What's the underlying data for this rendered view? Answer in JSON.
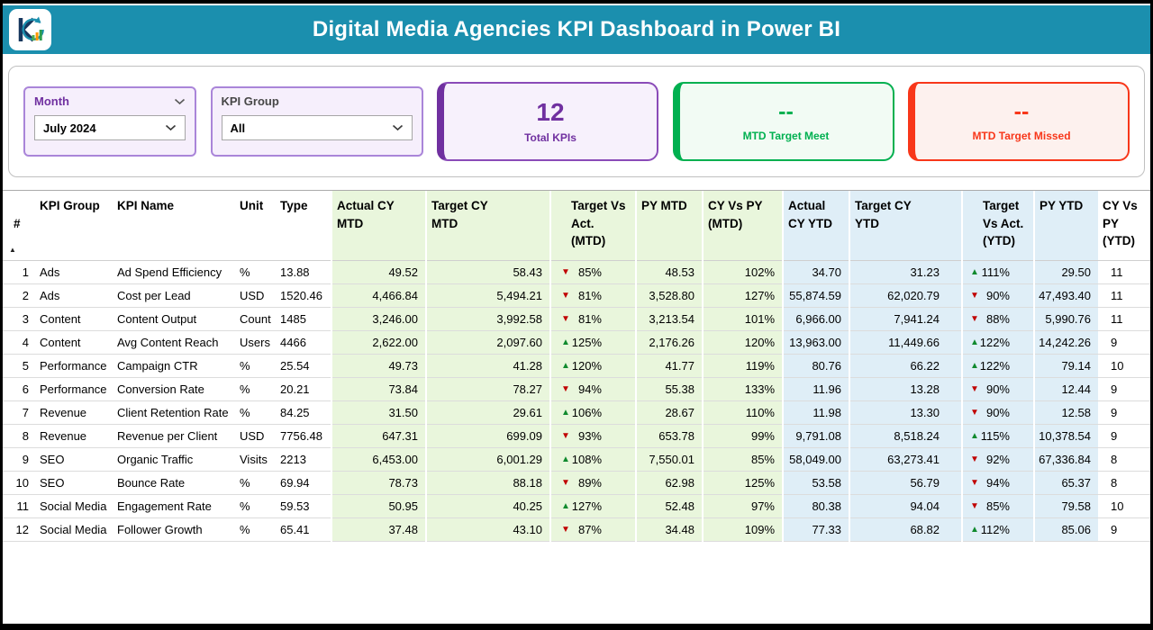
{
  "colors": {
    "header_bg": "#1b8fae",
    "accent_purple": "#7030a0",
    "accent_green": "#00b050",
    "accent_red": "#f8371a",
    "mtd_column_tint": "#e9f6dc",
    "ytd_column_tint": "#dfeef7"
  },
  "header": {
    "title": "Digital Media Agencies KPI Dashboard in Power BI"
  },
  "slicers": {
    "month": {
      "label": "Month",
      "value": "July 2024"
    },
    "kpi_group": {
      "label": "KPI Group",
      "value": "All"
    }
  },
  "cards": {
    "total_kpis": {
      "value": "12",
      "label": "Total KPIs"
    },
    "mtd_target_meet": {
      "value": "--",
      "label": "MTD Target Meet"
    },
    "mtd_target_missed": {
      "value": "--",
      "label": "MTD Target Missed"
    }
  },
  "table": {
    "sort": "ascending",
    "columns": [
      {
        "key": "num",
        "label": "#",
        "group": "plain",
        "align": "num"
      },
      {
        "key": "kpi_group",
        "label": "KPI Group",
        "group": "plain",
        "align": "left"
      },
      {
        "key": "kpi_name",
        "label": "KPI Name",
        "group": "plain",
        "align": "left"
      },
      {
        "key": "unit",
        "label": "Unit",
        "group": "plain",
        "align": "left"
      },
      {
        "key": "type",
        "label": "Type",
        "group": "plain",
        "align": "left"
      },
      {
        "key": "actual_cy_mtd",
        "label": "Actual CY\nMTD",
        "group": "mtd",
        "align": "right"
      },
      {
        "key": "target_cy_mtd",
        "label": "Target CY\nMTD",
        "group": "mtd",
        "align": "right"
      },
      {
        "key": "target_vs_act_mtd",
        "label": "Target Vs\nAct.\n(MTD)",
        "group": "mtd",
        "align": "kpi"
      },
      {
        "key": "py_mtd",
        "label": "PY MTD",
        "group": "mtd",
        "align": "right"
      },
      {
        "key": "cy_vs_py_mtd",
        "label": "CY Vs PY\n(MTD)",
        "group": "mtd",
        "align": "right"
      },
      {
        "key": "actual_cy_ytd",
        "label": "Actual\nCY YTD",
        "group": "ytd",
        "align": "right"
      },
      {
        "key": "target_cy_ytd",
        "label": "Target CY\nYTD",
        "group": "ytd",
        "align": "right"
      },
      {
        "key": "target_vs_act_ytd",
        "label": "Target\nVs Act.\n(YTD)",
        "group": "ytd",
        "align": "kpi"
      },
      {
        "key": "py_ytd",
        "label": "PY YTD",
        "group": "ytd",
        "align": "right"
      },
      {
        "key": "cy_vs_py_ytd",
        "label": "CY Vs\nPY\n(YTD)",
        "group": "plain",
        "align": "left"
      }
    ],
    "rows": [
      {
        "num": "1",
        "kpi_group": "Ads",
        "kpi_name": "Ad Spend Efficiency",
        "unit": "%",
        "type": "13.88",
        "actual_cy_mtd": "49.52",
        "target_cy_mtd": "58.43",
        "target_vs_act_mtd": "85%",
        "target_vs_act_mtd_dir": "down",
        "py_mtd": "48.53",
        "cy_vs_py_mtd": "102%",
        "actual_cy_ytd": "34.70",
        "target_cy_ytd": "31.23",
        "target_vs_act_ytd": "111%",
        "target_vs_act_ytd_dir": "up",
        "py_ytd": "29.50",
        "cy_vs_py_ytd": "11"
      },
      {
        "num": "2",
        "kpi_group": "Ads",
        "kpi_name": "Cost per Lead",
        "unit": "USD",
        "type": "1520.46",
        "actual_cy_mtd": "4,466.84",
        "target_cy_mtd": "5,494.21",
        "target_vs_act_mtd": "81%",
        "target_vs_act_mtd_dir": "down",
        "py_mtd": "3,528.80",
        "cy_vs_py_mtd": "127%",
        "actual_cy_ytd": "55,874.59",
        "target_cy_ytd": "62,020.79",
        "target_vs_act_ytd": "90%",
        "target_vs_act_ytd_dir": "down",
        "py_ytd": "47,493.40",
        "cy_vs_py_ytd": "11"
      },
      {
        "num": "3",
        "kpi_group": "Content",
        "kpi_name": "Content Output",
        "unit": "Count",
        "type": "1485",
        "actual_cy_mtd": "3,246.00",
        "target_cy_mtd": "3,992.58",
        "target_vs_act_mtd": "81%",
        "target_vs_act_mtd_dir": "down",
        "py_mtd": "3,213.54",
        "cy_vs_py_mtd": "101%",
        "actual_cy_ytd": "6,966.00",
        "target_cy_ytd": "7,941.24",
        "target_vs_act_ytd": "88%",
        "target_vs_act_ytd_dir": "down",
        "py_ytd": "5,990.76",
        "cy_vs_py_ytd": "11"
      },
      {
        "num": "4",
        "kpi_group": "Content",
        "kpi_name": "Avg Content Reach",
        "unit": "Users",
        "type": "4466",
        "actual_cy_mtd": "2,622.00",
        "target_cy_mtd": "2,097.60",
        "target_vs_act_mtd": "125%",
        "target_vs_act_mtd_dir": "up",
        "py_mtd": "2,176.26",
        "cy_vs_py_mtd": "120%",
        "actual_cy_ytd": "13,963.00",
        "target_cy_ytd": "11,449.66",
        "target_vs_act_ytd": "122%",
        "target_vs_act_ytd_dir": "up",
        "py_ytd": "14,242.26",
        "cy_vs_py_ytd": "9"
      },
      {
        "num": "5",
        "kpi_group": "Performance",
        "kpi_name": "Campaign CTR",
        "unit": "%",
        "type": "25.54",
        "actual_cy_mtd": "49.73",
        "target_cy_mtd": "41.28",
        "target_vs_act_mtd": "120%",
        "target_vs_act_mtd_dir": "up",
        "py_mtd": "41.77",
        "cy_vs_py_mtd": "119%",
        "actual_cy_ytd": "80.76",
        "target_cy_ytd": "66.22",
        "target_vs_act_ytd": "122%",
        "target_vs_act_ytd_dir": "up",
        "py_ytd": "79.14",
        "cy_vs_py_ytd": "10"
      },
      {
        "num": "6",
        "kpi_group": "Performance",
        "kpi_name": "Conversion Rate",
        "unit": "%",
        "type": "20.21",
        "actual_cy_mtd": "73.84",
        "target_cy_mtd": "78.27",
        "target_vs_act_mtd": "94%",
        "target_vs_act_mtd_dir": "down",
        "py_mtd": "55.38",
        "cy_vs_py_mtd": "133%",
        "actual_cy_ytd": "11.96",
        "target_cy_ytd": "13.28",
        "target_vs_act_ytd": "90%",
        "target_vs_act_ytd_dir": "down",
        "py_ytd": "12.44",
        "cy_vs_py_ytd": "9"
      },
      {
        "num": "7",
        "kpi_group": "Revenue",
        "kpi_name": "Client Retention Rate",
        "unit": "%",
        "type": "84.25",
        "actual_cy_mtd": "31.50",
        "target_cy_mtd": "29.61",
        "target_vs_act_mtd": "106%",
        "target_vs_act_mtd_dir": "up",
        "py_mtd": "28.67",
        "cy_vs_py_mtd": "110%",
        "actual_cy_ytd": "11.98",
        "target_cy_ytd": "13.30",
        "target_vs_act_ytd": "90%",
        "target_vs_act_ytd_dir": "down",
        "py_ytd": "12.58",
        "cy_vs_py_ytd": "9"
      },
      {
        "num": "8",
        "kpi_group": "Revenue",
        "kpi_name": "Revenue per Client",
        "unit": "USD",
        "type": "7756.48",
        "actual_cy_mtd": "647.31",
        "target_cy_mtd": "699.09",
        "target_vs_act_mtd": "93%",
        "target_vs_act_mtd_dir": "down",
        "py_mtd": "653.78",
        "cy_vs_py_mtd": "99%",
        "actual_cy_ytd": "9,791.08",
        "target_cy_ytd": "8,518.24",
        "target_vs_act_ytd": "115%",
        "target_vs_act_ytd_dir": "up",
        "py_ytd": "10,378.54",
        "cy_vs_py_ytd": "9"
      },
      {
        "num": "9",
        "kpi_group": "SEO",
        "kpi_name": "Organic Traffic",
        "unit": "Visits",
        "type": "2213",
        "actual_cy_mtd": "6,453.00",
        "target_cy_mtd": "6,001.29",
        "target_vs_act_mtd": "108%",
        "target_vs_act_mtd_dir": "up",
        "py_mtd": "7,550.01",
        "cy_vs_py_mtd": "85%",
        "actual_cy_ytd": "58,049.00",
        "target_cy_ytd": "63,273.41",
        "target_vs_act_ytd": "92%",
        "target_vs_act_ytd_dir": "down",
        "py_ytd": "67,336.84",
        "cy_vs_py_ytd": "8"
      },
      {
        "num": "10",
        "kpi_group": "SEO",
        "kpi_name": "Bounce Rate",
        "unit": "%",
        "type": "69.94",
        "actual_cy_mtd": "78.73",
        "target_cy_mtd": "88.18",
        "target_vs_act_mtd": "89%",
        "target_vs_act_mtd_dir": "down",
        "py_mtd": "62.98",
        "cy_vs_py_mtd": "125%",
        "actual_cy_ytd": "53.58",
        "target_cy_ytd": "56.79",
        "target_vs_act_ytd": "94%",
        "target_vs_act_ytd_dir": "down",
        "py_ytd": "65.37",
        "cy_vs_py_ytd": "8"
      },
      {
        "num": "11",
        "kpi_group": "Social Media",
        "kpi_name": "Engagement Rate",
        "unit": "%",
        "type": "59.53",
        "actual_cy_mtd": "50.95",
        "target_cy_mtd": "40.25",
        "target_vs_act_mtd": "127%",
        "target_vs_act_mtd_dir": "up",
        "py_mtd": "52.48",
        "cy_vs_py_mtd": "97%",
        "actual_cy_ytd": "80.38",
        "target_cy_ytd": "94.04",
        "target_vs_act_ytd": "85%",
        "target_vs_act_ytd_dir": "down",
        "py_ytd": "79.58",
        "cy_vs_py_ytd": "10"
      },
      {
        "num": "12",
        "kpi_group": "Social Media",
        "kpi_name": "Follower Growth",
        "unit": "%",
        "type": "65.41",
        "actual_cy_mtd": "37.48",
        "target_cy_mtd": "43.10",
        "target_vs_act_mtd": "87%",
        "target_vs_act_mtd_dir": "down",
        "py_mtd": "34.48",
        "cy_vs_py_mtd": "109%",
        "actual_cy_ytd": "77.33",
        "target_cy_ytd": "68.82",
        "target_vs_act_ytd": "112%",
        "target_vs_act_ytd_dir": "up",
        "py_ytd": "85.06",
        "cy_vs_py_ytd": "9"
      }
    ]
  }
}
